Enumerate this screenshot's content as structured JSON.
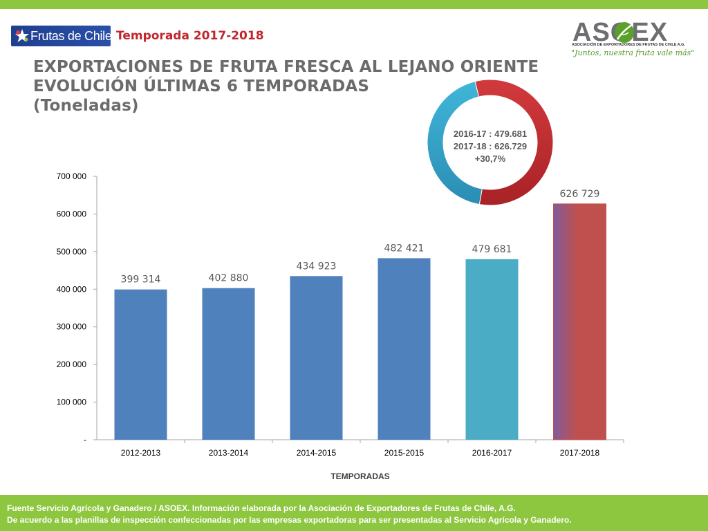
{
  "header": {
    "brand_label": "Frutas de Chile",
    "season": "Temporada 2017-2018",
    "title_lines": [
      "EXPORTACIONES DE FRUTA FRESCA AL LEJANO ORIENTE",
      "EVOLUCIÓN ÚLTIMAS 6 TEMPORADAS",
      "(Toneladas)"
    ]
  },
  "logo": {
    "name": "ASOEX",
    "subtitle": "ASOCIACIÓN DE EXPORTADORES DE FRUTAS DE CHILE A.G.",
    "slogan": "\"Juntos, nuestra fruta vale más\""
  },
  "colors": {
    "bar": "#4f81bd",
    "bar_2016": "#4bacc6",
    "bar_2017_dark": "#7e5c9c",
    "bar_2017_red": "#c0504d",
    "green": "#8dc63f",
    "title": "#6b6b6b",
    "accent_red": "#c0272d"
  },
  "chart_data": [
    {
      "type": "bar",
      "categories": [
        "2012-2013",
        "2013-2014",
        "2014-2015",
        "2015-2015",
        "2016-2017",
        "2017-2018"
      ],
      "values": [
        399314,
        402880,
        434923,
        482421,
        479681,
        626729
      ],
      "data_labels": [
        "399 314",
        "402 880",
        "434 923",
        "482 421",
        "479 681",
        "626 729"
      ],
      "title": "",
      "xlabel": "TEMPORADAS",
      "ylabel": "",
      "ylim": [
        0,
        700000
      ],
      "y_ticks": [
        0,
        100000,
        200000,
        300000,
        400000,
        500000,
        600000,
        700000
      ],
      "y_tick_labels": [
        "-",
        "100 000",
        "200 000",
        "300 000",
        "400 000",
        "500 000",
        "600 000",
        "700 000"
      ],
      "grid": false,
      "legend": "none"
    },
    {
      "type": "pie",
      "style": "donut",
      "slices": [
        {
          "label": "2016-17",
          "value": 479681,
          "color": "#4bacc6"
        },
        {
          "label": "2017-18",
          "value": 626729,
          "color": "#c0504d"
        }
      ],
      "center_lines": [
        "2016-17 : 479.681",
        "2017-18 : 626.729",
        "+30,7%"
      ]
    }
  ],
  "footer": {
    "line1": "Fuente Servicio Agrícola y Ganadero / ASOEX. Información elaborada por la Asociación de Exportadores de  Frutas de Chile, A.G.",
    "line2": "De acuerdo a las planillas de inspección confeccionadas por las empresas exportadoras  para ser presentadas al Servicio Agrícola y Ganadero."
  }
}
